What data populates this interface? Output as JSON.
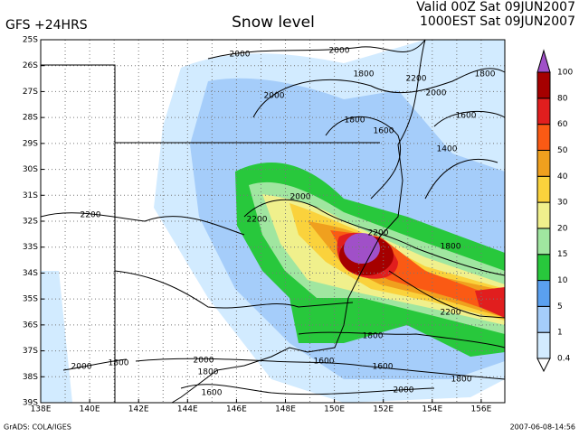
{
  "header": {
    "left": "GFS +24HRS",
    "title": "Snow level",
    "valid": "Valid 00Z Sat 09JUN2007",
    "local": "1000EST Sat 09JUN2007"
  },
  "map": {
    "lat_labels": [
      "25S",
      "26S",
      "27S",
      "28S",
      "29S",
      "30S",
      "31S",
      "32S",
      "33S",
      "34S",
      "35S",
      "36S",
      "37S",
      "38S",
      "39S"
    ],
    "lon_labels": [
      "138E",
      "140E",
      "142E",
      "144E",
      "146E",
      "148E",
      "150E",
      "152E",
      "154E",
      "156E"
    ],
    "contour_labels": [
      "2000",
      "2000",
      "1800",
      "2200",
      "2000",
      "1800",
      "2000",
      "1800",
      "1600",
      "1600",
      "1400",
      "2000",
      "2200",
      "2200",
      "1800",
      "2200",
      "1800",
      "2200",
      "2000",
      "1800",
      "1600",
      "1800",
      "2000",
      "1600",
      "2000",
      "1800",
      "1600"
    ]
  },
  "legend": {
    "labels": [
      "0.4",
      "1",
      "5",
      "10",
      "15",
      "20",
      "30",
      "40",
      "50",
      "60",
      "80",
      "100"
    ],
    "colors": [
      "#ffffff",
      "#d2ebff",
      "#a5cdfa",
      "#5aa0f0",
      "#28c83c",
      "#a0e6a0",
      "#f0f08c",
      "#fad23c",
      "#f0a01e",
      "#fa5a14",
      "#e11e1e",
      "#a50000",
      "#a050c8"
    ]
  },
  "footer": {
    "left": "GrADS: COLA/IGES",
    "right": "2007-06-08-14:56"
  }
}
